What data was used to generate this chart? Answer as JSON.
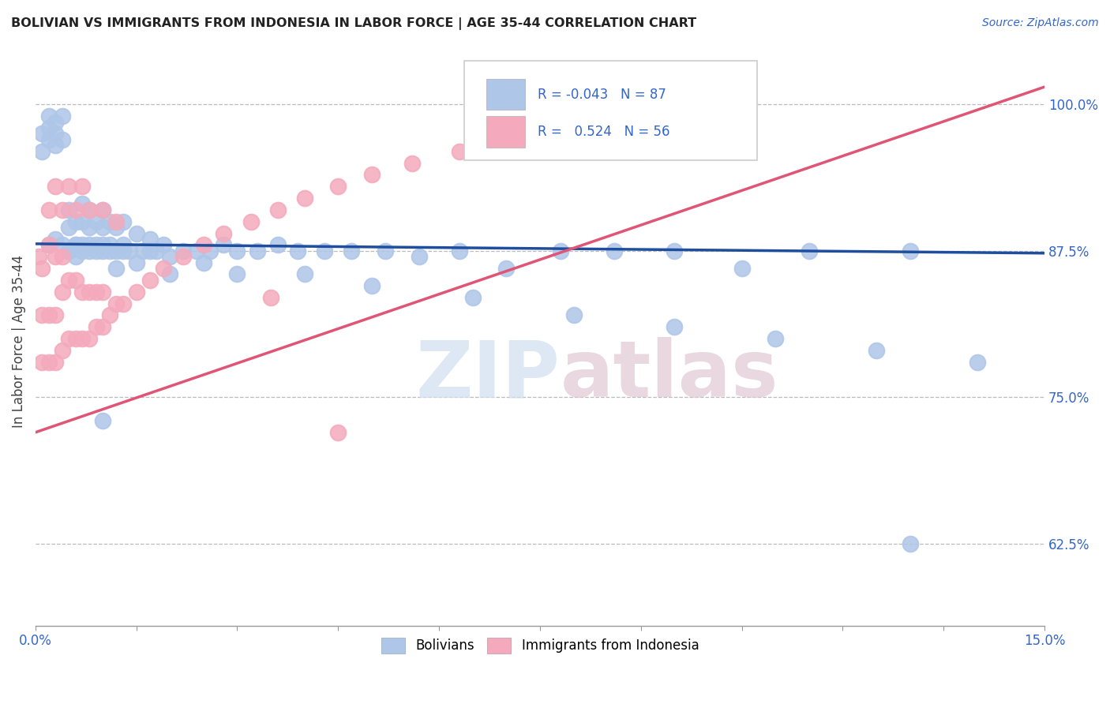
{
  "title": "BOLIVIAN VS IMMIGRANTS FROM INDONESIA IN LABOR FORCE | AGE 35-44 CORRELATION CHART",
  "source": "Source: ZipAtlas.com",
  "ylabel": "In Labor Force | Age 35-44",
  "ytick_values": [
    0.625,
    0.75,
    0.875,
    1.0
  ],
  "ytick_labels": [
    "62.5%",
    "75.0%",
    "87.5%",
    "100.0%"
  ],
  "xlim": [
    0.0,
    0.15
  ],
  "ylim": [
    0.555,
    1.04
  ],
  "legend_blue_R": "-0.043",
  "legend_blue_N": "87",
  "legend_pink_R": "0.524",
  "legend_pink_N": "56",
  "blue_color": "#aec6e8",
  "pink_color": "#f4aabc",
  "blue_line_color": "#1f4e9e",
  "pink_line_color": "#e05575",
  "blue_line_x": [
    0.0,
    0.15
  ],
  "blue_line_y": [
    0.881,
    0.873
  ],
  "pink_line_x": [
    0.0,
    0.15
  ],
  "pink_line_y": [
    0.72,
    1.015
  ],
  "blue_x": [
    0.001,
    0.001,
    0.002,
    0.002,
    0.002,
    0.003,
    0.003,
    0.003,
    0.004,
    0.004,
    0.005,
    0.005,
    0.005,
    0.006,
    0.006,
    0.006,
    0.007,
    0.007,
    0.007,
    0.008,
    0.008,
    0.008,
    0.009,
    0.009,
    0.01,
    0.01,
    0.01,
    0.011,
    0.011,
    0.012,
    0.012,
    0.013,
    0.013,
    0.014,
    0.015,
    0.016,
    0.017,
    0.018,
    0.019,
    0.02,
    0.022,
    0.024,
    0.026,
    0.028,
    0.03,
    0.033,
    0.036,
    0.039,
    0.043,
    0.047,
    0.052,
    0.057,
    0.063,
    0.07,
    0.078,
    0.086,
    0.095,
    0.105,
    0.115,
    0.13,
    0.002,
    0.003,
    0.004,
    0.005,
    0.006,
    0.007,
    0.008,
    0.009,
    0.01,
    0.011,
    0.012,
    0.013,
    0.015,
    0.017,
    0.02,
    0.025,
    0.03,
    0.04,
    0.05,
    0.065,
    0.08,
    0.095,
    0.11,
    0.125,
    0.14,
    0.01,
    0.13
  ],
  "blue_y": [
    0.975,
    0.96,
    0.97,
    0.98,
    0.99,
    0.975,
    0.965,
    0.985,
    0.97,
    0.99,
    0.875,
    0.895,
    0.91,
    0.88,
    0.9,
    0.87,
    0.88,
    0.9,
    0.915,
    0.875,
    0.895,
    0.91,
    0.88,
    0.9,
    0.875,
    0.895,
    0.91,
    0.88,
    0.9,
    0.875,
    0.895,
    0.88,
    0.9,
    0.875,
    0.89,
    0.875,
    0.885,
    0.875,
    0.88,
    0.87,
    0.875,
    0.875,
    0.875,
    0.88,
    0.875,
    0.875,
    0.88,
    0.875,
    0.875,
    0.875,
    0.875,
    0.87,
    0.875,
    0.86,
    0.875,
    0.875,
    0.875,
    0.86,
    0.875,
    0.875,
    0.88,
    0.885,
    0.88,
    0.875,
    0.88,
    0.875,
    0.88,
    0.875,
    0.88,
    0.875,
    0.86,
    0.875,
    0.865,
    0.875,
    0.855,
    0.865,
    0.855,
    0.855,
    0.845,
    0.835,
    0.82,
    0.81,
    0.8,
    0.79,
    0.78,
    0.73,
    0.625
  ],
  "pink_x": [
    0.0005,
    0.001,
    0.001,
    0.001,
    0.002,
    0.002,
    0.002,
    0.003,
    0.003,
    0.003,
    0.004,
    0.004,
    0.004,
    0.005,
    0.005,
    0.006,
    0.006,
    0.007,
    0.007,
    0.008,
    0.008,
    0.009,
    0.009,
    0.01,
    0.01,
    0.011,
    0.012,
    0.013,
    0.015,
    0.017,
    0.019,
    0.022,
    0.025,
    0.028,
    0.032,
    0.036,
    0.04,
    0.045,
    0.05,
    0.056,
    0.063,
    0.071,
    0.08,
    0.09,
    0.1,
    0.002,
    0.003,
    0.004,
    0.005,
    0.006,
    0.007,
    0.008,
    0.01,
    0.012,
    0.035,
    0.045
  ],
  "pink_y": [
    0.87,
    0.78,
    0.82,
    0.86,
    0.78,
    0.82,
    0.88,
    0.78,
    0.82,
    0.87,
    0.79,
    0.84,
    0.87,
    0.8,
    0.85,
    0.8,
    0.85,
    0.8,
    0.84,
    0.8,
    0.84,
    0.81,
    0.84,
    0.81,
    0.84,
    0.82,
    0.83,
    0.83,
    0.84,
    0.85,
    0.86,
    0.87,
    0.88,
    0.89,
    0.9,
    0.91,
    0.92,
    0.93,
    0.94,
    0.95,
    0.96,
    0.97,
    0.97,
    0.96,
    0.97,
    0.91,
    0.93,
    0.91,
    0.93,
    0.91,
    0.93,
    0.91,
    0.91,
    0.9,
    0.835,
    0.72
  ]
}
